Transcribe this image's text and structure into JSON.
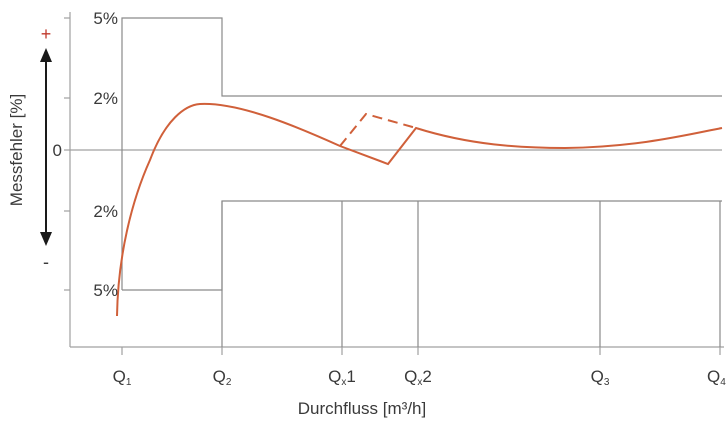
{
  "y_axis": {
    "title": "Messfehler [%]",
    "plus_sign": "+",
    "minus_sign": "-",
    "tick_labels": [
      {
        "label": "5%",
        "value": 5
      },
      {
        "label": "2%",
        "value": 2
      },
      {
        "label": "0",
        "value": 0
      },
      {
        "label": "2%",
        "value": -2
      },
      {
        "label": "5%",
        "value": -5
      }
    ]
  },
  "x_axis": {
    "title": "Durchfluss [m³/h]",
    "ticks": [
      {
        "main": "Q",
        "sub": "1",
        "suffix": ""
      },
      {
        "main": "Q",
        "sub": "2",
        "suffix": ""
      },
      {
        "main": "Q",
        "sub": "x",
        "suffix": "1"
      },
      {
        "main": "Q",
        "sub": "x",
        "suffix": "2"
      },
      {
        "main": "Q",
        "sub": "3",
        "suffix": ""
      },
      {
        "main": "Q",
        "sub": "4",
        "suffix": ""
      }
    ]
  },
  "colors": {
    "curve": "#d0603a",
    "frame": "#8a8a8a",
    "axis": "#9a9a9a",
    "arrow": "#1a1a1a",
    "plus": "#c0392b",
    "text": "#3a3a3a"
  }
}
